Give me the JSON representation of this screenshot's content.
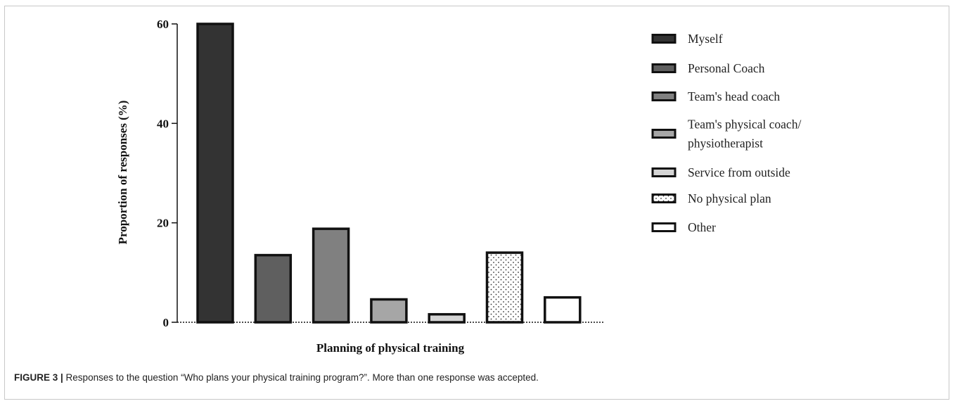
{
  "chart_data": {
    "type": "bar",
    "categories": [
      "Myself",
      "Personal Coach",
      "Team's head coach",
      "Team's physical coach/ physiotherapist",
      "Service from outside",
      "No physical plan",
      "Other"
    ],
    "values": [
      60,
      13.5,
      18.8,
      4.6,
      1.6,
      14,
      5
    ],
    "xlabel": "Planning of physical training",
    "ylabel": "Proportion of responses (%)",
    "ylim": [
      0,
      60
    ],
    "yticks": [
      0,
      20,
      40,
      60
    ],
    "grid": false,
    "legend_position": "right",
    "legend": [
      {
        "lines": [
          "Myself"
        ],
        "fill": "#333333",
        "pattern": "solid"
      },
      {
        "lines": [
          "Personal Coach"
        ],
        "fill": "#5f5f5f",
        "pattern": "solid"
      },
      {
        "lines": [
          "Team's head coach"
        ],
        "fill": "#808080",
        "pattern": "solid"
      },
      {
        "lines": [
          "Team's physical coach/",
          "physiotherapist"
        ],
        "fill": "#a6a6a6",
        "pattern": "solid"
      },
      {
        "lines": [
          "Service from outside"
        ],
        "fill": "#d4d4d4",
        "pattern": "solid"
      },
      {
        "lines": [
          "No physical plan"
        ],
        "fill": "#ffffff",
        "pattern": "dots"
      },
      {
        "lines": [
          "Other"
        ],
        "fill": "#ffffff",
        "pattern": "solid"
      }
    ]
  },
  "caption": {
    "label": "FIGURE 3 |",
    "text": " Responses to the question “Who plans your physical training program?”. More than one response was accepted."
  }
}
